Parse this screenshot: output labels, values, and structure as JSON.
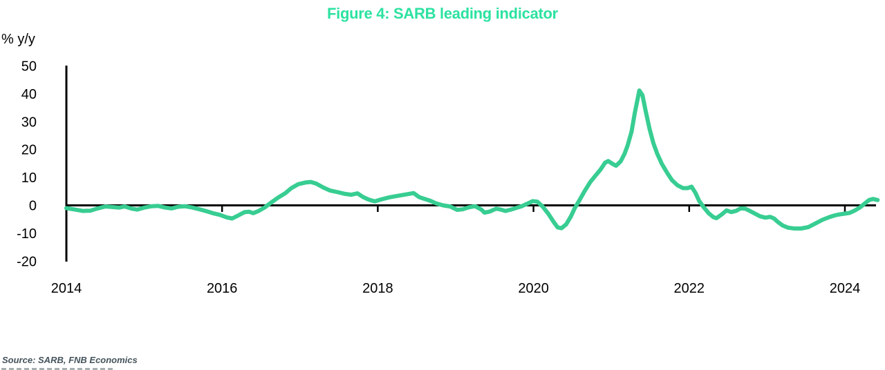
{
  "source": {
    "text": "Source: SARB, FNB Economics"
  },
  "chart_data": {
    "type": "line",
    "title": "Figure 4: SARB leading indicator",
    "ylabel": "% y/y",
    "xlabel": "",
    "legend": "none",
    "grid": false,
    "xlim": [
      2014,
      2024.45
    ],
    "ylim": [
      -20,
      50
    ],
    "x_ticks": [
      2014,
      2016,
      2018,
      2020,
      2022,
      2024
    ],
    "y_ticks": [
      50,
      40,
      30,
      20,
      10,
      0,
      -10,
      -20
    ],
    "title_color": "#2ce2a0",
    "line_color": "#38cd92",
    "axis_color": "#000000",
    "series": [
      {
        "name": "SARB leading indicator (% y/y)",
        "points": [
          [
            2014.0,
            -1.0
          ],
          [
            2014.11,
            -1.5
          ],
          [
            2014.21,
            -2.0
          ],
          [
            2014.31,
            -1.9
          ],
          [
            2014.39,
            -1.2
          ],
          [
            2014.5,
            -0.4
          ],
          [
            2014.59,
            -0.6
          ],
          [
            2014.68,
            -0.8
          ],
          [
            2014.75,
            -0.4
          ],
          [
            2014.84,
            -1.2
          ],
          [
            2014.91,
            -1.5
          ],
          [
            2015.0,
            -0.8
          ],
          [
            2015.1,
            -0.3
          ],
          [
            2015.18,
            -0.2
          ],
          [
            2015.27,
            -0.8
          ],
          [
            2015.35,
            -1.1
          ],
          [
            2015.44,
            -0.5
          ],
          [
            2015.52,
            -0.3
          ],
          [
            2015.62,
            -0.8
          ],
          [
            2015.71,
            -1.4
          ],
          [
            2015.8,
            -2.1
          ],
          [
            2015.88,
            -2.8
          ],
          [
            2015.97,
            -3.4
          ],
          [
            2016.06,
            -4.3
          ],
          [
            2016.13,
            -4.7
          ],
          [
            2016.21,
            -3.6
          ],
          [
            2016.29,
            -2.4
          ],
          [
            2016.35,
            -2.3
          ],
          [
            2016.4,
            -2.8
          ],
          [
            2016.47,
            -2.0
          ],
          [
            2016.55,
            -0.7
          ],
          [
            2016.63,
            1.0
          ],
          [
            2016.72,
            2.8
          ],
          [
            2016.81,
            4.3
          ],
          [
            2016.89,
            6.2
          ],
          [
            2016.98,
            7.6
          ],
          [
            2017.07,
            8.2
          ],
          [
            2017.14,
            8.4
          ],
          [
            2017.21,
            7.8
          ],
          [
            2017.3,
            6.4
          ],
          [
            2017.39,
            5.3
          ],
          [
            2017.49,
            4.7
          ],
          [
            2017.58,
            4.1
          ],
          [
            2017.66,
            3.8
          ],
          [
            2017.74,
            4.3
          ],
          [
            2017.81,
            3.0
          ],
          [
            2017.88,
            2.1
          ],
          [
            2017.96,
            1.4
          ],
          [
            2018.04,
            2.1
          ],
          [
            2018.15,
            2.9
          ],
          [
            2018.27,
            3.5
          ],
          [
            2018.38,
            4.0
          ],
          [
            2018.46,
            4.4
          ],
          [
            2018.53,
            3.0
          ],
          [
            2018.59,
            2.4
          ],
          [
            2018.67,
            1.7
          ],
          [
            2018.75,
            0.7
          ],
          [
            2018.84,
            0.0
          ],
          [
            2018.93,
            -0.4
          ],
          [
            2019.02,
            -1.6
          ],
          [
            2019.09,
            -1.4
          ],
          [
            2019.17,
            -0.7
          ],
          [
            2019.25,
            -0.3
          ],
          [
            2019.33,
            -1.5
          ],
          [
            2019.37,
            -2.6
          ],
          [
            2019.44,
            -2.2
          ],
          [
            2019.52,
            -1.2
          ],
          [
            2019.58,
            -1.5
          ],
          [
            2019.64,
            -2.0
          ],
          [
            2019.71,
            -1.5
          ],
          [
            2019.78,
            -0.9
          ],
          [
            2019.85,
            -0.3
          ],
          [
            2019.92,
            0.6
          ],
          [
            2019.99,
            1.5
          ],
          [
            2020.05,
            1.3
          ],
          [
            2020.12,
            -0.5
          ],
          [
            2020.19,
            -3.0
          ],
          [
            2020.26,
            -6.0
          ],
          [
            2020.31,
            -7.9
          ],
          [
            2020.36,
            -8.2
          ],
          [
            2020.42,
            -6.8
          ],
          [
            2020.48,
            -4.0
          ],
          [
            2020.53,
            -1.0
          ],
          [
            2020.59,
            1.8
          ],
          [
            2020.65,
            4.8
          ],
          [
            2020.73,
            8.4
          ],
          [
            2020.8,
            10.8
          ],
          [
            2020.86,
            12.8
          ],
          [
            2020.92,
            15.3
          ],
          [
            2020.96,
            15.9
          ],
          [
            2021.02,
            14.8
          ],
          [
            2021.06,
            14.2
          ],
          [
            2021.12,
            15.8
          ],
          [
            2021.17,
            18.5
          ],
          [
            2021.21,
            21.5
          ],
          [
            2021.26,
            26.5
          ],
          [
            2021.3,
            33.0
          ],
          [
            2021.34,
            38.5
          ],
          [
            2021.36,
            41.2
          ],
          [
            2021.4,
            39.5
          ],
          [
            2021.44,
            34.0
          ],
          [
            2021.49,
            27.5
          ],
          [
            2021.54,
            22.3
          ],
          [
            2021.59,
            18.5
          ],
          [
            2021.65,
            14.8
          ],
          [
            2021.72,
            11.5
          ],
          [
            2021.78,
            9.0
          ],
          [
            2021.85,
            7.2
          ],
          [
            2021.92,
            6.2
          ],
          [
            2021.98,
            6.2
          ],
          [
            2022.03,
            6.7
          ],
          [
            2022.08,
            4.5
          ],
          [
            2022.13,
            1.5
          ],
          [
            2022.19,
            -0.8
          ],
          [
            2022.25,
            -2.8
          ],
          [
            2022.31,
            -4.2
          ],
          [
            2022.35,
            -4.6
          ],
          [
            2022.42,
            -3.2
          ],
          [
            2022.48,
            -1.8
          ],
          [
            2022.54,
            -2.4
          ],
          [
            2022.6,
            -2.0
          ],
          [
            2022.66,
            -1.1
          ],
          [
            2022.72,
            -1.2
          ],
          [
            2022.78,
            -2.0
          ],
          [
            2022.84,
            -2.9
          ],
          [
            2022.91,
            -3.9
          ],
          [
            2022.98,
            -4.4
          ],
          [
            2023.04,
            -4.1
          ],
          [
            2023.09,
            -4.7
          ],
          [
            2023.14,
            -6.0
          ],
          [
            2023.2,
            -7.2
          ],
          [
            2023.27,
            -8.0
          ],
          [
            2023.35,
            -8.3
          ],
          [
            2023.44,
            -8.3
          ],
          [
            2023.53,
            -7.8
          ],
          [
            2023.62,
            -6.5
          ],
          [
            2023.71,
            -5.2
          ],
          [
            2023.8,
            -4.2
          ],
          [
            2023.87,
            -3.6
          ],
          [
            2023.92,
            -3.3
          ],
          [
            2023.99,
            -3.0
          ],
          [
            2024.06,
            -2.7
          ],
          [
            2024.13,
            -1.8
          ],
          [
            2024.2,
            -0.6
          ],
          [
            2024.26,
            0.8
          ],
          [
            2024.31,
            1.9
          ],
          [
            2024.36,
            2.3
          ],
          [
            2024.42,
            1.9
          ]
        ]
      }
    ]
  }
}
